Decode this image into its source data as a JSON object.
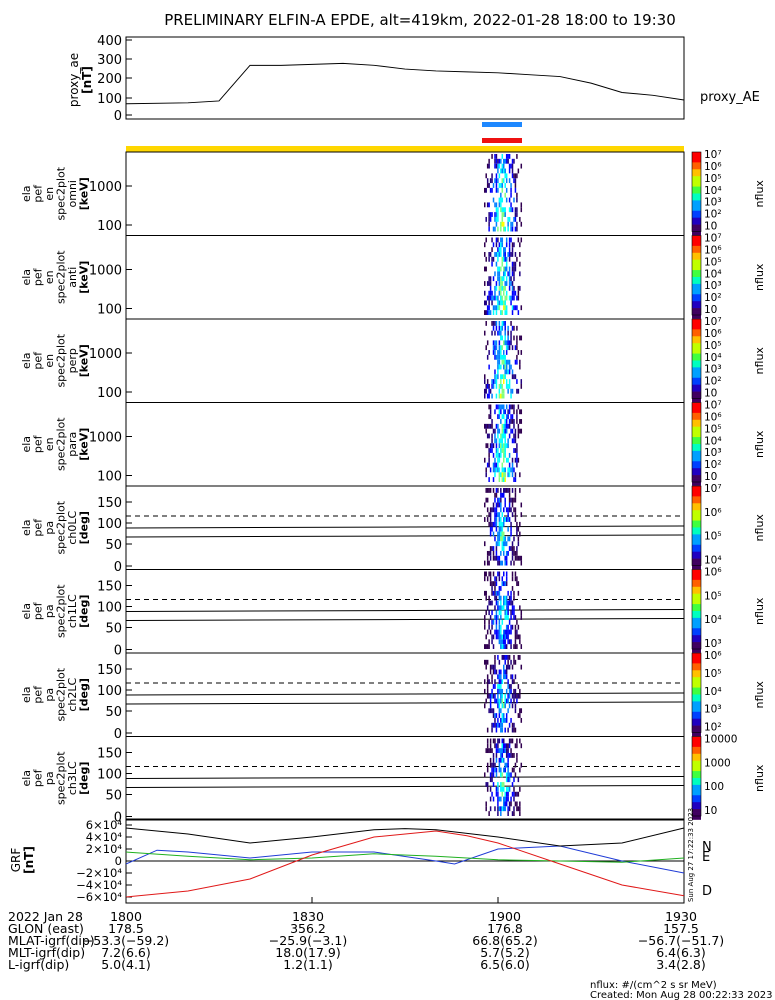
{
  "title": "PRELIMINARY ELFIN-A EPDE, alt=419km, 2022-01-28 18:00 to 19:30",
  "colors": {
    "ae_line": "#000000",
    "blue_bar": "#1e88ff",
    "red_bar": "#ee1111",
    "yellow_bar": "#ffd700",
    "grf_N": "#1f3bd6",
    "grf_E": "#20b020",
    "grf_D": "#e01818",
    "grf_total": "#000000"
  },
  "ae_panel": {
    "ylabel_lines": [
      "proxy_ae",
      "[nT]"
    ],
    "yticks": [
      "400",
      "300",
      "200",
      "100",
      "0"
    ],
    "legend": "proxy_AE"
  },
  "spec_panels": [
    {
      "ylabel": [
        "ela",
        "pef",
        "en",
        "spec2plot",
        "omni",
        "[keV]"
      ],
      "yticks": [
        "1000",
        "100"
      ],
      "cbar_ticks": [
        "10⁷",
        "10⁶",
        "10⁵",
        "10⁴",
        "10³",
        "10²",
        "10"
      ],
      "cbar_label": "nflux"
    },
    {
      "ylabel": [
        "ela",
        "pef",
        "en",
        "spec2plot",
        "anti",
        "[keV]"
      ],
      "yticks": [
        "1000",
        "100"
      ],
      "cbar_ticks": [
        "10⁷",
        "10⁶",
        "10⁵",
        "10⁴",
        "10³",
        "10²",
        "10"
      ],
      "cbar_label": "nflux"
    },
    {
      "ylabel": [
        "ela",
        "pef",
        "en",
        "spec2plot",
        "perp",
        "[keV]"
      ],
      "yticks": [
        "1000",
        "100"
      ],
      "cbar_ticks": [
        "10⁷",
        "10⁶",
        "10⁵",
        "10⁴",
        "10³",
        "10²",
        "10"
      ],
      "cbar_label": "nflux"
    },
    {
      "ylabel": [
        "ela",
        "pef",
        "en",
        "spec2plot",
        "para",
        "[keV]"
      ],
      "yticks": [
        "1000",
        "100"
      ],
      "cbar_ticks": [
        "10⁷",
        "10⁶",
        "10⁵",
        "10⁴",
        "10³",
        "10²",
        "10"
      ],
      "cbar_label": "nflux"
    }
  ],
  "pa_panels": [
    {
      "ylabel": [
        "ela",
        "pef",
        "pa",
        "spec2plot",
        "ch0LC",
        "[deg]"
      ],
      "yticks": [
        "150",
        "100",
        "50",
        "0"
      ],
      "cbar_ticks": [
        "10⁷",
        "10⁶",
        "10⁵",
        "10⁴"
      ],
      "cbar_label": "nflux"
    },
    {
      "ylabel": [
        "ela",
        "pef",
        "pa",
        "spec2plot",
        "ch1LC",
        "[deg]"
      ],
      "yticks": [
        "150",
        "100",
        "50",
        "0"
      ],
      "cbar_ticks": [
        "10⁶",
        "10⁵",
        "10⁴",
        "10³"
      ],
      "cbar_label": "nflux"
    },
    {
      "ylabel": [
        "ela",
        "pef",
        "pa",
        "spec2plot",
        "ch2LC",
        "[deg]"
      ],
      "yticks": [
        "150",
        "100",
        "50",
        "0"
      ],
      "cbar_ticks": [
        "10⁶",
        "10⁵",
        "10⁴",
        "10³",
        "10²"
      ],
      "cbar_label": "nflux"
    },
    {
      "ylabel": [
        "ela",
        "pef",
        "pa",
        "spec2plot",
        "ch3LC",
        "[deg]"
      ],
      "yticks": [
        "150",
        "100",
        "50",
        "0"
      ],
      "cbar_ticks": [
        "10000",
        "1000",
        "100",
        "10"
      ],
      "cbar_label": "nflux"
    }
  ],
  "grf_panel": {
    "ylabel_lines": [
      "GRF",
      "[nT]"
    ],
    "yticks": [
      "6×10⁴",
      "4×10⁴",
      "2×10⁴",
      "0",
      "−2×10⁴",
      "−4×10⁴",
      "−6×10⁴"
    ],
    "legend": [
      "N",
      "E",
      "D"
    ],
    "side_stamp": "Sun Aug 27 17:22:33 2023"
  },
  "xaxis": {
    "rows": [
      {
        "label": "2022 Jan 28",
        "values": [
          "1800",
          "1830",
          "1900",
          "1930"
        ]
      },
      {
        "label": "GLON (east)",
        "values": [
          "178.5",
          "356.2",
          "176.8",
          "157.5"
        ]
      },
      {
        "label": "MLAT-igrf(dip)",
        "values": [
          "−53.3(−59.2)",
          "−25.9(−3.1)",
          "66.8(65.2)",
          "−56.7(−51.7)"
        ]
      },
      {
        "label": "MLT-igrf(dip)",
        "values": [
          "7.2(6.6)",
          "18.0(17.9)",
          "5.7(5.2)",
          "6.4(6.3)"
        ]
      },
      {
        "label": "L-igrf(dip)",
        "values": [
          "5.0(4.1)",
          "1.2(1.1)",
          "6.5(6.0)",
          "3.4(2.8)"
        ]
      }
    ]
  },
  "footer": {
    "units": "nflux: #/(cm^2 s sr MeV)",
    "created": "Created: Mon Aug 28 00:22:33 2023"
  },
  "chart_data": {
    "type": "line",
    "title": "PRELIMINARY ELFIN-A EPDE, alt=419km, 2022-01-28 18:00 to 19:30",
    "x_range_hhmm": [
      "18:00",
      "19:30"
    ],
    "xlabel": "2022 Jan 28",
    "series": [
      {
        "name": "proxy_AE",
        "x_min": [
          0,
          10,
          15,
          20,
          25,
          30,
          35,
          40,
          45,
          50,
          55,
          60,
          65,
          70,
          75,
          80,
          85,
          90
        ],
        "values": [
          60,
          65,
          75,
          265,
          265,
          270,
          275,
          265,
          245,
          235,
          230,
          225,
          215,
          205,
          170,
          120,
          105,
          80
        ]
      },
      {
        "name": "GRF N",
        "x_min": [
          0,
          5,
          10,
          20,
          30,
          40,
          50,
          53,
          60,
          70,
          80,
          90
        ],
        "values": [
          -5000,
          18000,
          15000,
          5000,
          15000,
          15000,
          0,
          -5000,
          20000,
          25000,
          0,
          -20000
        ]
      },
      {
        "name": "GRF E",
        "x_min": [
          0,
          10,
          20,
          30,
          40,
          50,
          60,
          70,
          80,
          90
        ],
        "values": [
          15000,
          8000,
          2000,
          5000,
          12000,
          8000,
          2000,
          0,
          -2000,
          5000
        ]
      },
      {
        "name": "GRF D",
        "x_min": [
          0,
          10,
          20,
          30,
          40,
          50,
          55,
          60,
          70,
          80,
          90
        ],
        "values": [
          -60000,
          -50000,
          -30000,
          10000,
          40000,
          50000,
          42000,
          30000,
          -5000,
          -40000,
          -58000
        ]
      }
    ],
    "ae_ylim": [
      0,
      400
    ],
    "grf_ylim": [
      -60000,
      60000
    ]
  }
}
